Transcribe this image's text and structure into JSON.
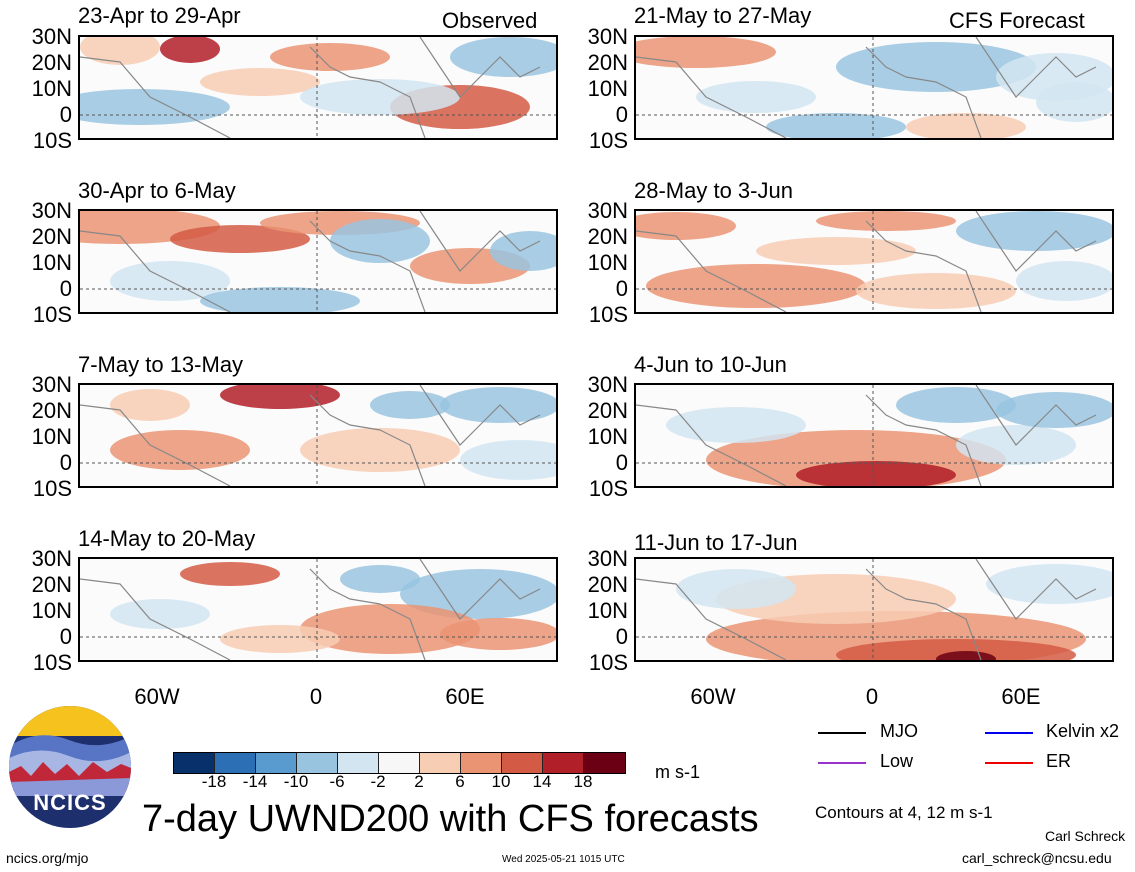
{
  "observed_label": "Observed",
  "forecast_label": "CFS Forecast",
  "latitude_labels": [
    "30N",
    "20N",
    "10N",
    "0",
    "10S"
  ],
  "longitude_labels": [
    "60W",
    "0",
    "60E"
  ],
  "panels": {
    "observed": [
      {
        "title": "23-Apr to 29-Apr"
      },
      {
        "title": "30-Apr to 6-May"
      },
      {
        "title": "7-May to 13-May"
      },
      {
        "title": "14-May to 20-May"
      }
    ],
    "forecast": [
      {
        "title": "21-May to 27-May"
      },
      {
        "title": "28-May to 3-Jun"
      },
      {
        "title": "4-Jun to 10-Jun"
      },
      {
        "title": "11-Jun to 17-Jun"
      }
    ]
  },
  "colorbar": {
    "tick_labels": [
      "-18",
      "-14",
      "-10",
      "-6",
      "-2",
      "2",
      "6",
      "10",
      "14",
      "18"
    ],
    "colors": [
      "#08306b",
      "#2c6fb5",
      "#5a9bcf",
      "#99c4e0",
      "#d2e5f1",
      "#f7f7f7",
      "#f7cdb4",
      "#ea9473",
      "#d35a44",
      "#b11f28",
      "#6b0014"
    ],
    "units": "m s-1"
  },
  "legend": {
    "items": [
      {
        "label": "MJO",
        "color": "#000000"
      },
      {
        "label": "Kelvin x2",
        "color": "#0000ee"
      },
      {
        "label": "Low",
        "color": "#9a32cd"
      },
      {
        "label": "ER",
        "color": "#ee0000"
      }
    ],
    "contours_note": "Contours at 4, 12 m s-1"
  },
  "title": "7-day UWND200 with CFS forecasts",
  "logo_text": "NCICS",
  "footer": {
    "url": "ncics.org/mjo",
    "timestamp": "Wed 2025-05-21 1015 UTC",
    "author": "Carl Schreck",
    "email": "carl_schreck@ncsu.edu"
  }
}
